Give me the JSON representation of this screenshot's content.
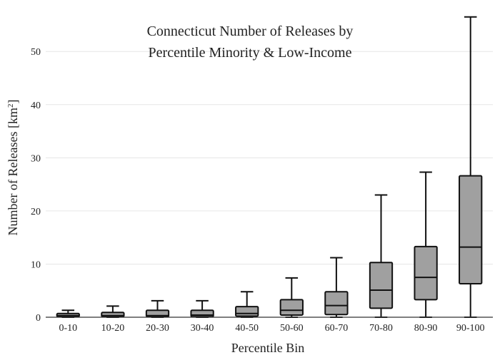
{
  "chart_data": {
    "type": "box",
    "title_line1": "Connecticut Number of Releases by",
    "title_line2": "Percentile Minority & Low-Income",
    "xlabel": "Percentile Bin",
    "ylabel_main": "Number of Releases  [km",
    "ylabel_sup": "2",
    "ylabel_end": "]",
    "ylim": [
      0,
      57
    ],
    "yticks": [
      0,
      10,
      20,
      30,
      40,
      50
    ],
    "grid": true,
    "box_fill": "#a0a0a0",
    "grid_color": "#e6e6e6",
    "axis_color": "#333333",
    "categories": [
      "0-10",
      "10-20",
      "20-30",
      "30-40",
      "40-50",
      "50-60",
      "60-70",
      "70-80",
      "80-90",
      "90-100"
    ],
    "boxes": [
      {
        "min": 0,
        "q1": 0.1,
        "median": 0.3,
        "q3": 0.7,
        "max": 1.3
      },
      {
        "min": 0,
        "q1": 0.1,
        "median": 0.3,
        "q3": 0.9,
        "max": 2.1
      },
      {
        "min": 0,
        "q1": 0.1,
        "median": 0.3,
        "q3": 1.3,
        "max": 3.1
      },
      {
        "min": 0,
        "q1": 0.1,
        "median": 0.4,
        "q3": 1.3,
        "max": 3.1
      },
      {
        "min": 0,
        "q1": 0.2,
        "median": 0.7,
        "q3": 2.0,
        "max": 4.8
      },
      {
        "min": 0,
        "q1": 0.4,
        "median": 1.3,
        "q3": 3.3,
        "max": 7.4
      },
      {
        "min": 0,
        "q1": 0.5,
        "median": 2.2,
        "q3": 4.8,
        "max": 11.2
      },
      {
        "min": 0,
        "q1": 1.7,
        "median": 5.1,
        "q3": 10.3,
        "max": 23.0
      },
      {
        "min": 0,
        "q1": 3.3,
        "median": 7.5,
        "q3": 13.3,
        "max": 27.3
      },
      {
        "min": 0,
        "q1": 6.3,
        "median": 13.2,
        "q3": 26.6,
        "max": 56.5
      }
    ]
  }
}
